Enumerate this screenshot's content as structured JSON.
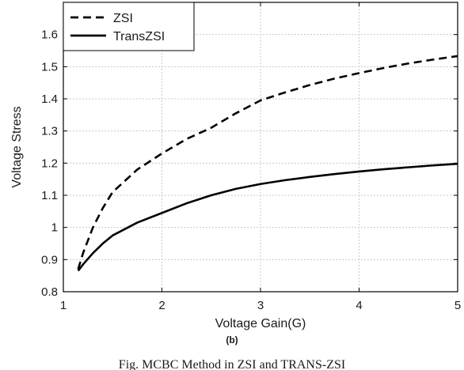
{
  "chart_data": {
    "type": "line",
    "title": "",
    "xlabel": "Voltage Gain(G)",
    "ylabel": "Voltage Stress",
    "xlim": [
      1,
      5
    ],
    "ylim": [
      0.8,
      1.7
    ],
    "xticks": [
      1,
      2,
      3,
      4,
      5
    ],
    "yticks": [
      0.8,
      0.9,
      1,
      1.1,
      1.2,
      1.3,
      1.4,
      1.5,
      1.6
    ],
    "xtick_labels": [
      "1",
      "2",
      "3",
      "4",
      "5"
    ],
    "ytick_labels": [
      "0.8",
      "0.9",
      "1",
      "1.1",
      "1.2",
      "1.3",
      "1.4",
      "1.5",
      "1.6"
    ],
    "grid": true,
    "legend_position": "top-left",
    "series": [
      {
        "name": "ZSI",
        "style": "dashed",
        "color": "#000000",
        "x": [
          1.15,
          1.2,
          1.3,
          1.4,
          1.5,
          1.75,
          2,
          2.25,
          2.5,
          2.75,
          3,
          3.25,
          3.5,
          3.75,
          4,
          4.25,
          4.5,
          4.75,
          5
        ],
        "y": [
          0.87,
          0.92,
          1.0,
          1.06,
          1.11,
          1.18,
          1.23,
          1.275,
          1.31,
          1.355,
          1.395,
          1.42,
          1.443,
          1.463,
          1.48,
          1.496,
          1.51,
          1.522,
          1.533
        ]
      },
      {
        "name": "TransZSI",
        "style": "solid",
        "color": "#000000",
        "x": [
          1.15,
          1.2,
          1.3,
          1.4,
          1.5,
          1.75,
          2,
          2.25,
          2.5,
          2.75,
          3,
          3.25,
          3.5,
          3.75,
          4,
          4.25,
          4.5,
          4.75,
          5
        ],
        "y": [
          0.865,
          0.885,
          0.92,
          0.95,
          0.975,
          1.015,
          1.045,
          1.075,
          1.1,
          1.12,
          1.135,
          1.147,
          1.157,
          1.166,
          1.174,
          1.181,
          1.187,
          1.193,
          1.198
        ]
      }
    ]
  },
  "figure": {
    "sublabel": "(b)",
    "caption": "Fig. MCBC Method in ZSI and TRANS-ZSI"
  }
}
